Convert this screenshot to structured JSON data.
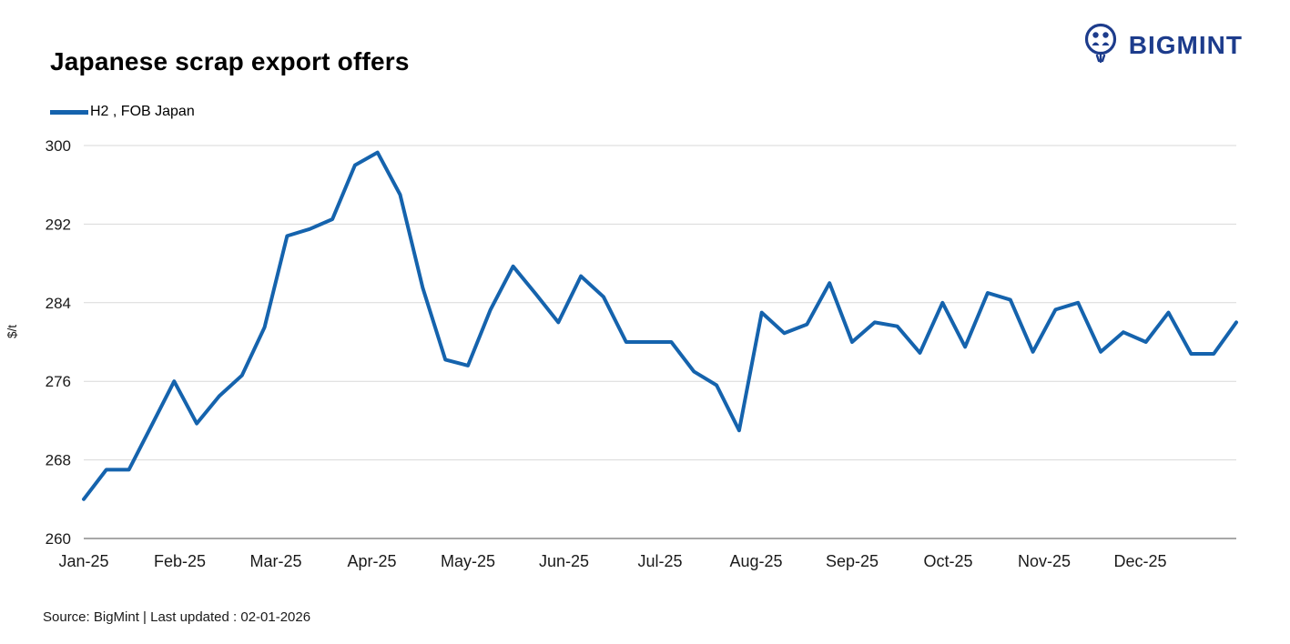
{
  "header": {
    "title": "Japanese scrap export offers"
  },
  "brand": {
    "name": "BIGMINT",
    "color": "#1d3c8c"
  },
  "legend": {
    "label": "H2 , FOB Japan"
  },
  "footer": {
    "source": "Source: BigMint  | Last updated : 02-01-2026"
  },
  "chart_data": {
    "type": "line",
    "title": "Japanese scrap export offers",
    "series": [
      {
        "name": "H2 , FOB Japan",
        "values": [
          264,
          267,
          267,
          271.5,
          276,
          271.7,
          274.5,
          276.6,
          281.5,
          290.8,
          291.5,
          292.5,
          298,
          299.3,
          295,
          285.5,
          278.2,
          277.6,
          283.3,
          287.7,
          284.9,
          282,
          286.7,
          284.6,
          280,
          280,
          280,
          277,
          275.6,
          271,
          283,
          280.9,
          281.8,
          286,
          280,
          282,
          281.6,
          278.9,
          284,
          279.5,
          285,
          284.3,
          279,
          283.3,
          284,
          279,
          281,
          280,
          283,
          278.8,
          278.8,
          282
        ]
      }
    ],
    "x_tick_labels": [
      "Jan-25",
      "Feb-25",
      "Mar-25",
      "Apr-25",
      "May-25",
      "Jun-25",
      "Jul-25",
      "Aug-25",
      "Sep-25",
      "Oct-25",
      "Nov-25",
      "Dec-25"
    ],
    "x_frequency": "weekly",
    "ylabel": "$/t",
    "xlabel": "",
    "ylim": [
      260,
      300
    ],
    "yticks": [
      260,
      268,
      276,
      284,
      292,
      300
    ],
    "grid": "horizontal",
    "legend_position": "top-left",
    "line_color": "#1563ad",
    "grid_color": "#d9d9d9",
    "axis_color": "#8c8c8c"
  }
}
